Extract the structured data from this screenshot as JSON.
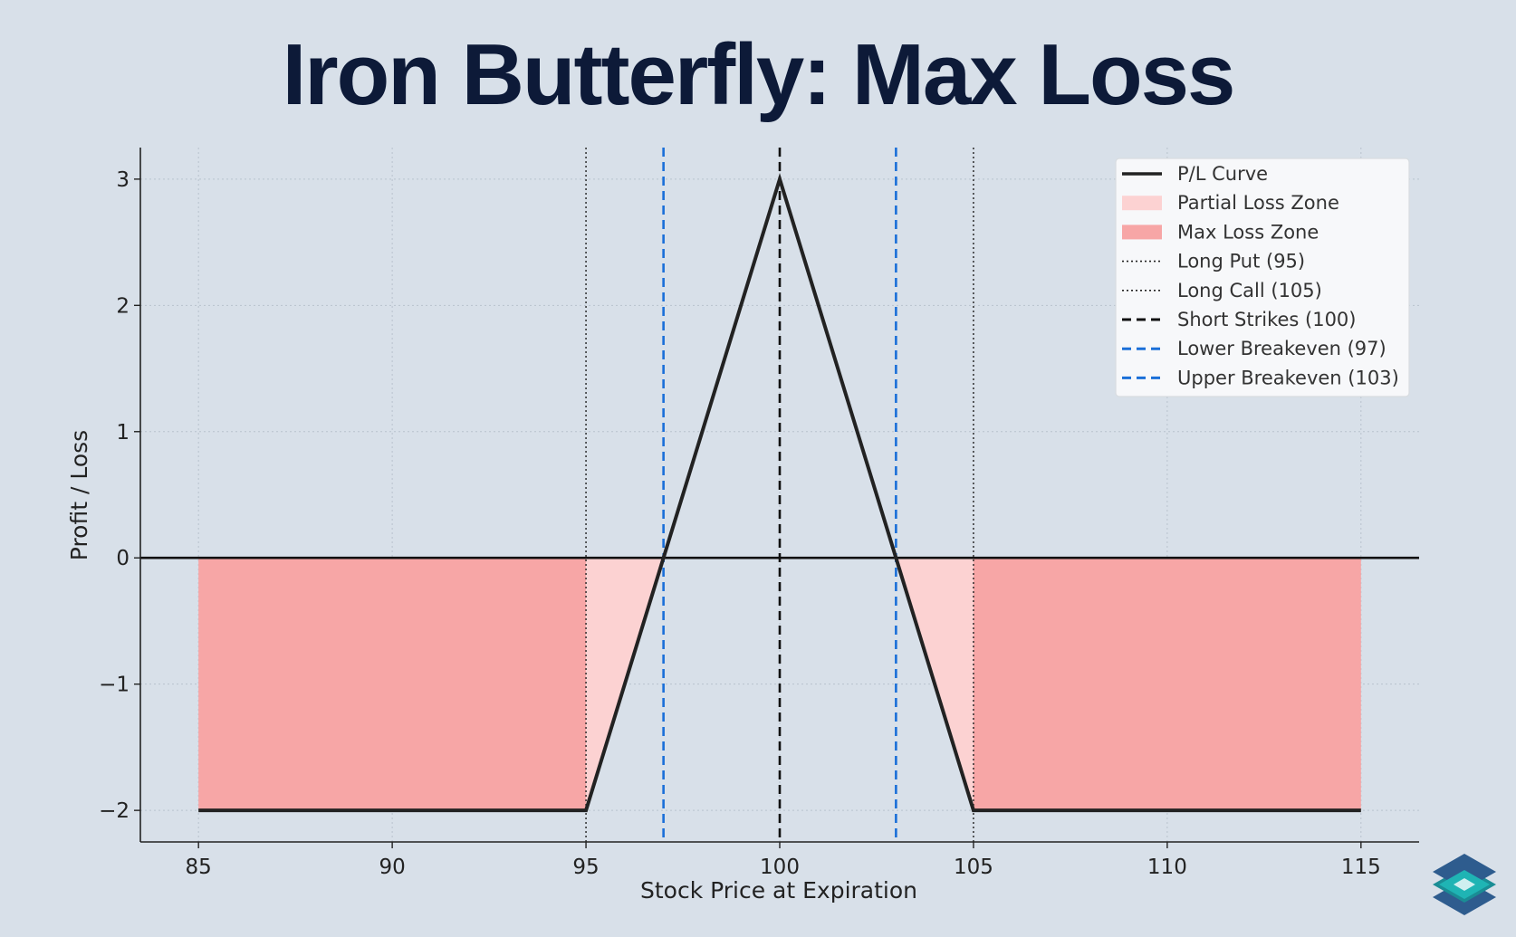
{
  "title": "Iron Butterfly: Max Loss",
  "chart_data": {
    "type": "line",
    "title": "Iron Butterfly: Max Loss",
    "xlabel": "Stock Price at Expiration",
    "ylabel": "Profit / Loss",
    "xlim": [
      83.5,
      116.5
    ],
    "ylim": [
      -2.25,
      3.25
    ],
    "xticks": [
      85,
      90,
      95,
      100,
      105,
      110,
      115
    ],
    "yticks": [
      -2,
      -1,
      0,
      1,
      2,
      3
    ],
    "ytick_labels": [
      "−2",
      "−1",
      "0",
      "1",
      "2",
      "3"
    ],
    "grid": true,
    "legend_position": "top-right",
    "series": [
      {
        "name": "P/L Curve",
        "x": [
          85,
          95,
          100,
          105,
          115
        ],
        "y": [
          -2,
          -2,
          3,
          -2,
          -2
        ],
        "color": "#222222"
      }
    ],
    "zones": [
      {
        "name": "Max Loss Zone",
        "ranges": [
          [
            85,
            95
          ],
          [
            105,
            115
          ]
        ],
        "color": "#f7a6a6"
      },
      {
        "name": "Partial Loss Zone",
        "ranges": [
          [
            95,
            97
          ],
          [
            103,
            105
          ]
        ],
        "color": "#fcd2d2"
      }
    ],
    "vlines": [
      {
        "name": "Long Put (95)",
        "x": 95,
        "style": "dotted",
        "color": "#222222"
      },
      {
        "name": "Long Call (105)",
        "x": 105,
        "style": "dotted",
        "color": "#222222"
      },
      {
        "name": "Short Strikes (100)",
        "x": 100,
        "style": "dashed",
        "color": "#111111"
      },
      {
        "name": "Lower Breakeven (97)",
        "x": 97,
        "style": "dashed",
        "color": "#1a6fd8"
      },
      {
        "name": "Upper Breakeven (103)",
        "x": 103,
        "style": "dashed",
        "color": "#1a6fd8"
      }
    ],
    "legend": [
      {
        "label": "P/L Curve",
        "kind": "line",
        "color": "#222222"
      },
      {
        "label": "Partial Loss Zone",
        "kind": "patch",
        "color": "#fcd2d2"
      },
      {
        "label": "Max Loss Zone",
        "kind": "patch",
        "color": "#f7a6a6"
      },
      {
        "label": "Long Put (95)",
        "kind": "dotted",
        "color": "#222222"
      },
      {
        "label": "Long Call (105)",
        "kind": "dotted",
        "color": "#222222"
      },
      {
        "label": "Short Strikes (100)",
        "kind": "dashed",
        "color": "#111111"
      },
      {
        "label": "Lower Breakeven (97)",
        "kind": "dashed",
        "color": "#1a6fd8"
      },
      {
        "label": "Upper Breakeven (103)",
        "kind": "dashed",
        "color": "#1a6fd8"
      }
    ]
  },
  "logo": {
    "icon": "stacked-layers-logo-icon",
    "colors": [
      "#2e5c8e",
      "#1fb4b4",
      "#cfeff0"
    ]
  }
}
